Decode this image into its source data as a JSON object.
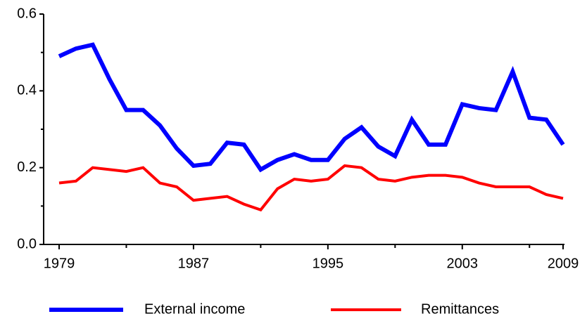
{
  "chart_data": {
    "type": "line",
    "x": [
      1979,
      1980,
      1981,
      1982,
      1983,
      1984,
      1985,
      1986,
      1987,
      1988,
      1989,
      1990,
      1991,
      1992,
      1993,
      1994,
      1995,
      1996,
      1997,
      1998,
      1999,
      2000,
      2001,
      2002,
      2003,
      2004,
      2005,
      2006,
      2007,
      2008,
      2009
    ],
    "series": [
      {
        "name": "External income",
        "color": "#0000ff",
        "values": [
          0.49,
          0.51,
          0.52,
          0.43,
          0.35,
          0.35,
          0.31,
          0.25,
          0.205,
          0.21,
          0.265,
          0.26,
          0.195,
          0.22,
          0.235,
          0.22,
          0.22,
          0.275,
          0.305,
          0.255,
          0.23,
          0.325,
          0.26,
          0.26,
          0.365,
          0.355,
          0.35,
          0.45,
          0.33,
          0.325,
          0.26
        ]
      },
      {
        "name": "Remittances",
        "color": "#ff0000",
        "values": [
          0.16,
          0.165,
          0.2,
          0.195,
          0.19,
          0.2,
          0.16,
          0.15,
          0.115,
          0.12,
          0.125,
          0.105,
          0.09,
          0.145,
          0.17,
          0.165,
          0.17,
          0.205,
          0.2,
          0.17,
          0.165,
          0.175,
          0.18,
          0.18,
          0.175,
          0.16,
          0.15,
          0.15,
          0.15,
          0.13,
          0.12
        ]
      }
    ],
    "xlim": [
      1979,
      2009
    ],
    "xticks": [
      1979,
      1987,
      1995,
      2003,
      2009
    ],
    "xminorticks": [
      1983,
      1991,
      1999,
      2007
    ],
    "ylim": [
      0,
      0.6
    ],
    "yticks": [
      {
        "value": 0,
        "label": "0.0"
      },
      0.2,
      0.4,
      0.6
    ],
    "yminorticks": [
      0.1,
      0.3,
      0.5
    ],
    "legend": "bottom"
  }
}
